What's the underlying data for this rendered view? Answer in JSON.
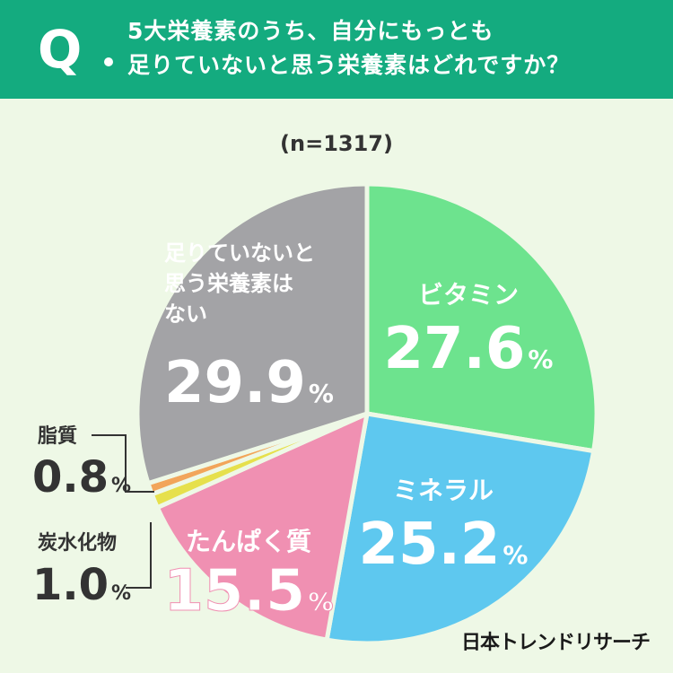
{
  "header": {
    "q_mark": "Q",
    "line1": "5大栄養素のうち、自分にもっとも",
    "line2": "足りていないと思う栄養素はどれですか？"
  },
  "sample_size": "(n=1317)",
  "brand": "日本トレンドリサーチ",
  "colors": {
    "header_bg": "#14ab7f",
    "vitamin": "#6de38e",
    "mineral": "#5ec8ef",
    "protein": "#f090b2",
    "carbohydrate": "#e6e04c",
    "lipid": "#f2a55a",
    "none": "#a3a3a6"
  },
  "chart_data": {
    "type": "pie",
    "start": "12 o'clock, clockwise",
    "slices": [
      {
        "label": "ビタミン",
        "value": 27.6,
        "value_text": "27.6",
        "color": "#6de38e",
        "label_position": "inside"
      },
      {
        "label": "ミネラル",
        "value": 25.2,
        "value_text": "25.2",
        "color": "#5ec8ef",
        "label_position": "inside"
      },
      {
        "label": "たんぱく質",
        "value": 15.5,
        "value_text": "15.5",
        "color": "#f090b2",
        "label_position": "inside"
      },
      {
        "label": "炭水化物",
        "value": 1.0,
        "value_text": "1.0",
        "color": "#e6e04c",
        "label_position": "outside"
      },
      {
        "label": "脂質",
        "value": 0.8,
        "value_text": "0.8",
        "color": "#f2a55a",
        "label_position": "outside"
      },
      {
        "label": "足りていないと思う栄養素はない",
        "label_lines": [
          "足りていないと",
          "思う栄養素は",
          "ない"
        ],
        "value": 29.9,
        "value_text": "29.9",
        "color": "#a3a3a6",
        "label_position": "inside"
      }
    ],
    "unit": "%"
  }
}
